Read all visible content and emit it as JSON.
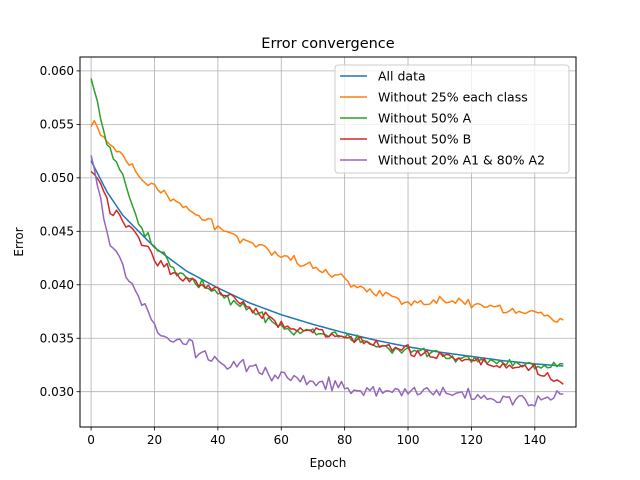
{
  "chart_data": {
    "type": "line",
    "title": "Error convergence",
    "xlabel": "Epoch",
    "ylabel": "Error",
    "xlim": [
      -3.5,
      153
    ],
    "ylim": [
      0.0267,
      0.0613
    ],
    "xticks": [
      0,
      20,
      40,
      60,
      80,
      100,
      120,
      140
    ],
    "yticks": [
      0.03,
      0.035,
      0.04,
      0.045,
      0.05,
      0.055,
      0.06
    ],
    "ytick_labels": [
      "0.030",
      "0.035",
      "0.040",
      "0.045",
      "0.050",
      "0.055",
      "0.060"
    ],
    "grid": true,
    "legend_position": "top-right",
    "n_points": 150,
    "series": [
      {
        "name": "All data",
        "color": "#1f77b4",
        "keypoints": [
          [
            0,
            0.0516
          ],
          [
            5,
            0.0487
          ],
          [
            10,
            0.0465
          ],
          [
            20,
            0.0435
          ],
          [
            30,
            0.0413
          ],
          [
            40,
            0.0397
          ],
          [
            50,
            0.0383
          ],
          [
            60,
            0.0372
          ],
          [
            70,
            0.0363
          ],
          [
            80,
            0.0355
          ],
          [
            90,
            0.0348
          ],
          [
            100,
            0.0342
          ],
          [
            110,
            0.0337
          ],
          [
            120,
            0.0333
          ],
          [
            130,
            0.0329
          ],
          [
            140,
            0.0326
          ],
          [
            149,
            0.0324
          ]
        ],
        "noise": 0
      },
      {
        "name": "Without 25% each class",
        "color": "#ff7f0e",
        "keypoints": [
          [
            0,
            0.0548
          ],
          [
            1,
            0.0552
          ],
          [
            5,
            0.0533
          ],
          [
            10,
            0.052
          ],
          [
            15,
            0.0502
          ],
          [
            20,
            0.049
          ],
          [
            30,
            0.0472
          ],
          [
            40,
            0.0453
          ],
          [
            50,
            0.044
          ],
          [
            60,
            0.0428
          ],
          [
            70,
            0.0417
          ],
          [
            80,
            0.0405
          ],
          [
            90,
            0.0393
          ],
          [
            100,
            0.0384
          ],
          [
            110,
            0.0385
          ],
          [
            120,
            0.0383
          ],
          [
            130,
            0.0377
          ],
          [
            140,
            0.0374
          ],
          [
            149,
            0.0367
          ]
        ],
        "noise": 0.0005
      },
      {
        "name": "Without 50% A",
        "color": "#2ca02c",
        "keypoints": [
          [
            0,
            0.0593
          ],
          [
            2,
            0.0568
          ],
          [
            5,
            0.0535
          ],
          [
            8,
            0.051
          ],
          [
            10,
            0.05
          ],
          [
            15,
            0.0457
          ],
          [
            20,
            0.0438
          ],
          [
            25,
            0.0418
          ],
          [
            30,
            0.0408
          ],
          [
            35,
            0.04
          ],
          [
            40,
            0.0392
          ],
          [
            50,
            0.0376
          ],
          [
            60,
            0.036
          ],
          [
            70,
            0.0354
          ],
          [
            80,
            0.0352
          ],
          [
            90,
            0.0342
          ],
          [
            100,
            0.0338
          ],
          [
            110,
            0.0335
          ],
          [
            120,
            0.033
          ],
          [
            130,
            0.0325
          ],
          [
            140,
            0.0322
          ],
          [
            149,
            0.0326
          ]
        ],
        "noise": 0.0006
      },
      {
        "name": "Without 50% B",
        "color": "#d62728",
        "keypoints": [
          [
            0,
            0.0506
          ],
          [
            3,
            0.0495
          ],
          [
            6,
            0.047
          ],
          [
            10,
            0.046
          ],
          [
            15,
            0.0445
          ],
          [
            20,
            0.0425
          ],
          [
            25,
            0.0414
          ],
          [
            30,
            0.0405
          ],
          [
            40,
            0.0395
          ],
          [
            50,
            0.038
          ],
          [
            60,
            0.0363
          ],
          [
            70,
            0.0356
          ],
          [
            80,
            0.035
          ],
          [
            90,
            0.0344
          ],
          [
            100,
            0.0338
          ],
          [
            110,
            0.0334
          ],
          [
            120,
            0.0329
          ],
          [
            130,
            0.0325
          ],
          [
            140,
            0.0322
          ],
          [
            149,
            0.0307
          ]
        ],
        "noise": 0.0006
      },
      {
        "name": "Without 20% A1 & 80% A2",
        "color": "#9467bd",
        "keypoints": [
          [
            0,
            0.0521
          ],
          [
            2,
            0.0495
          ],
          [
            4,
            0.0465
          ],
          [
            6,
            0.044
          ],
          [
            8,
            0.0425
          ],
          [
            10,
            0.0418
          ],
          [
            12,
            0.04
          ],
          [
            15,
            0.039
          ],
          [
            18,
            0.0372
          ],
          [
            20,
            0.036
          ],
          [
            25,
            0.035
          ],
          [
            30,
            0.0345
          ],
          [
            35,
            0.0335
          ],
          [
            40,
            0.033
          ],
          [
            50,
            0.0322
          ],
          [
            60,
            0.0315
          ],
          [
            70,
            0.031
          ],
          [
            80,
            0.0306
          ],
          [
            90,
            0.0301
          ],
          [
            100,
            0.0302
          ],
          [
            110,
            0.0298
          ],
          [
            120,
            0.0296
          ],
          [
            130,
            0.0294
          ],
          [
            140,
            0.0292
          ],
          [
            149,
            0.0298
          ]
        ],
        "noise": 0.0008
      }
    ]
  }
}
